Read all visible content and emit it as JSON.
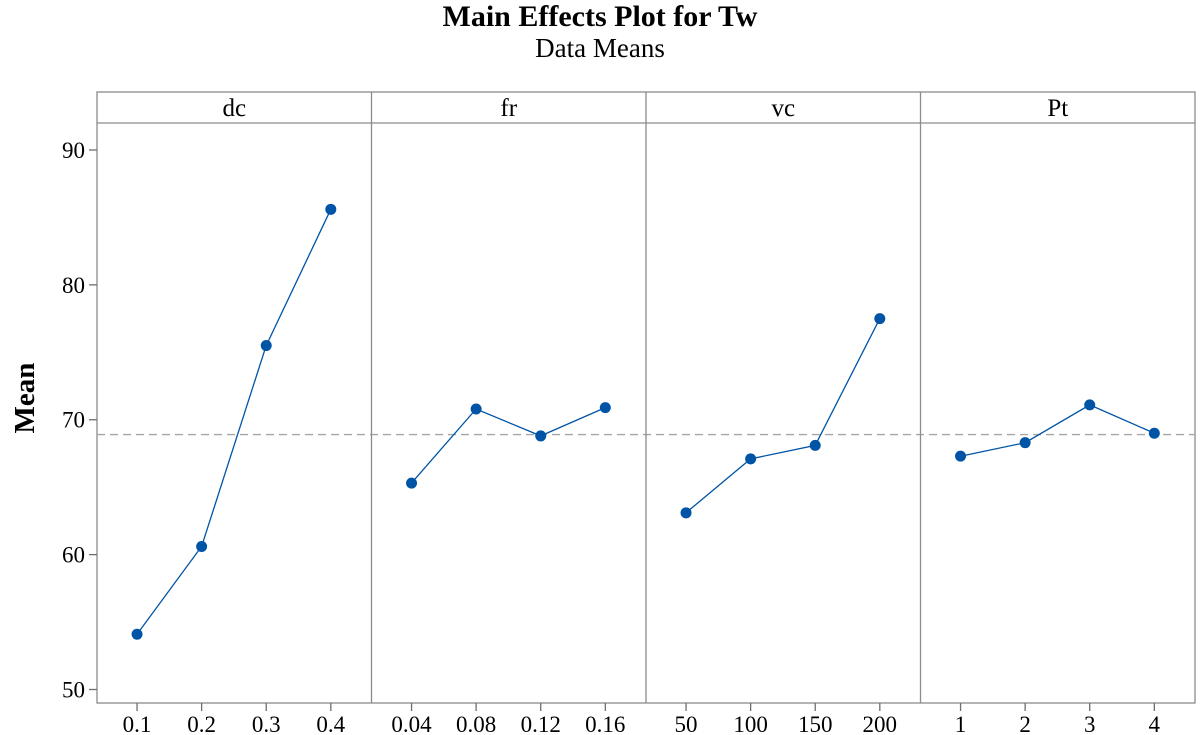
{
  "chart_data": {
    "type": "line",
    "title": "Main Effects Plot for Tw",
    "subtitle": "Data Means",
    "ylabel": "Mean",
    "ylim": [
      49,
      92
    ],
    "yticks": [
      50,
      60,
      70,
      80,
      90
    ],
    "reference_mean": 68.9,
    "color": "#0054a6",
    "panels": [
      {
        "factor": "dc",
        "x": [
          "0.1",
          "0.2",
          "0.3",
          "0.4"
        ],
        "values": [
          54.1,
          60.6,
          75.5,
          85.6
        ]
      },
      {
        "factor": "fr",
        "x": [
          "0.04",
          "0.08",
          "0.12",
          "0.16"
        ],
        "values": [
          65.3,
          70.8,
          68.8,
          70.9
        ]
      },
      {
        "factor": "vc",
        "x": [
          "50",
          "100",
          "150",
          "200"
        ],
        "values": [
          63.1,
          67.1,
          68.1,
          77.5
        ]
      },
      {
        "factor": "Pt",
        "x": [
          "1",
          "2",
          "3",
          "4"
        ],
        "values": [
          67.3,
          68.3,
          71.1,
          69.0
        ]
      }
    ]
  }
}
